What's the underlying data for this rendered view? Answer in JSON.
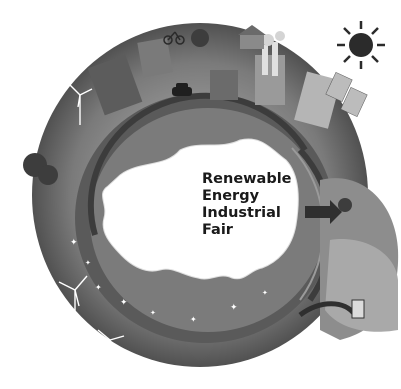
{
  "poster": {
    "title_lines": [
      "Renewable",
      "Energy",
      "Industrial",
      "Fair"
    ]
  },
  "colors": {
    "ring_dark": "#4a4a4a",
    "ring_mid": "#6e6e6e",
    "ring_light": "#9a9a9a",
    "continent": "#ffffff",
    "ground": "#8a8a8a",
    "sun": "#2b2b2b"
  },
  "icons": [
    "sun-icon",
    "wind-turbine-icon",
    "car-icon",
    "factory-icon",
    "tree-icon",
    "solar-panel-icon",
    "cyclist-icon",
    "house-icon",
    "arrow-right-icon",
    "plug-icon"
  ]
}
